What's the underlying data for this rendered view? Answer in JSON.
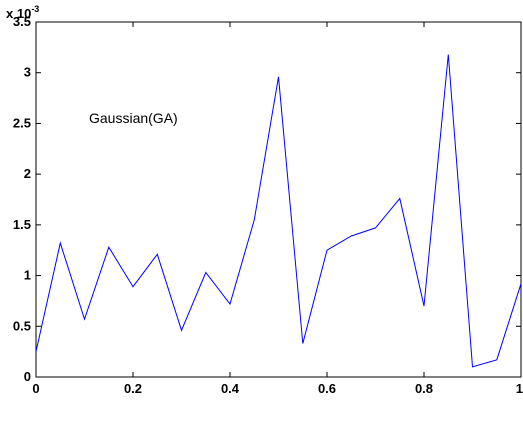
{
  "chart_data": {
    "type": "line",
    "title": "",
    "xlabel": "",
    "ylabel": "",
    "xlim": [
      0,
      1
    ],
    "ylim": [
      0,
      0.0035
    ],
    "grid": false,
    "y_multiplier": {
      "base": "x 10",
      "exponent": "-3"
    },
    "annotation": "Gaussian(GA)",
    "x_ticks": [
      "0",
      "0.2",
      "0.4",
      "0.6",
      "0.8",
      "1"
    ],
    "x_tick_values": [
      0,
      0.2,
      0.4,
      0.6,
      0.8,
      1
    ],
    "y_ticks": [
      "0",
      "0.5",
      "1",
      "1.5",
      "2",
      "2.5",
      "3",
      "3.5"
    ],
    "y_tick_values": [
      0,
      0.0005,
      0.001,
      0.0015,
      0.002,
      0.0025,
      0.003,
      0.0035
    ],
    "series": [
      {
        "color": "#0000ff",
        "x": [
          0,
          0.05,
          0.1,
          0.15,
          0.2,
          0.25,
          0.3,
          0.35,
          0.4,
          0.45,
          0.5,
          0.55,
          0.6,
          0.65,
          0.7,
          0.75,
          0.8,
          0.85,
          0.9,
          0.95,
          1.0
        ],
        "y": [
          0.00025,
          0.00132,
          0.00057,
          0.00128,
          0.00089,
          0.00121,
          0.00046,
          0.00103,
          0.00072,
          0.00155,
          0.00296,
          0.00033,
          0.00125,
          0.00139,
          0.00147,
          0.00176,
          0.0007,
          0.00318,
          0.0001,
          0.00017,
          0.00092
        ]
      }
    ]
  }
}
